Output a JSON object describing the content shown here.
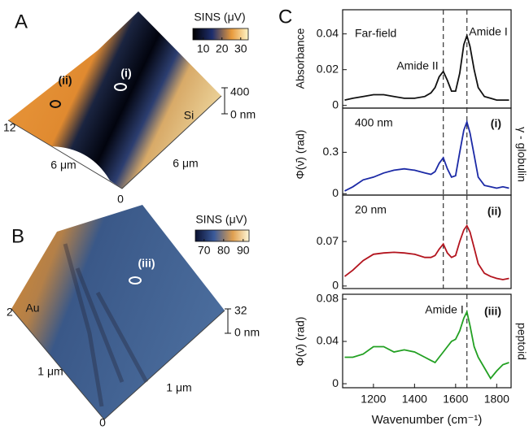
{
  "panel_a": {
    "letter": "A",
    "colorbar": {
      "label": "SINS (μV)",
      "range": [
        4.5,
        34
      ],
      "ticks": [
        10,
        20,
        30
      ]
    },
    "labels": [
      "(i)",
      "(ii)",
      "Si",
      "400",
      "0 nm",
      "12",
      "6 μm",
      "6 μm",
      "0"
    ]
  },
  "panel_b": {
    "letter": "B",
    "colorbar": {
      "label": "SINS (μV)",
      "range": [
        65.5,
        93
      ],
      "ticks": [
        70,
        80,
        90
      ]
    },
    "labels": [
      "(iii)",
      "Au",
      "32",
      "0 nm",
      "2",
      "1 μm",
      "1 μm",
      "0"
    ]
  },
  "panel_c": {
    "letter": "C",
    "side_labels": [
      "γ - globulin",
      "peptoid"
    ]
  },
  "chart_data": [
    {
      "type": "line",
      "ylabel": "Absorbance",
      "annotations": [
        "Far-field",
        "Amide II",
        "Amide I"
      ],
      "xlim": [
        1050,
        1870
      ],
      "ylim": [
        -0.0015,
        0.0535
      ],
      "yticks": [
        0,
        0.02,
        0.04
      ],
      "vlines": [
        1540,
        1655
      ],
      "x": [
        1060,
        1100,
        1150,
        1200,
        1250,
        1300,
        1350,
        1400,
        1450,
        1480,
        1500,
        1520,
        1540,
        1560,
        1580,
        1600,
        1620,
        1640,
        1655,
        1670,
        1690,
        1710,
        1740,
        1770,
        1800,
        1830,
        1860
      ],
      "series": [
        {
          "color": "#111111",
          "values": [
            0.003,
            0.004,
            0.005,
            0.006,
            0.006,
            0.005,
            0.004,
            0.004,
            0.005,
            0.007,
            0.01,
            0.016,
            0.019,
            0.014,
            0.008,
            0.008,
            0.018,
            0.034,
            0.039,
            0.033,
            0.02,
            0.01,
            0.005,
            0.004,
            0.003,
            0.003,
            0.003
          ]
        }
      ]
    },
    {
      "type": "line",
      "ylabel": "Φ(ν̄) (rad)",
      "annotations": [
        "400 nm",
        "(i)"
      ],
      "xlim": [
        1050,
        1870
      ],
      "ylim": [
        -0.01,
        0.62
      ],
      "yticks": [
        0,
        0.3
      ],
      "vlines": [
        1540,
        1655
      ],
      "x": [
        1060,
        1100,
        1150,
        1200,
        1250,
        1300,
        1350,
        1400,
        1450,
        1480,
        1500,
        1520,
        1540,
        1560,
        1580,
        1600,
        1620,
        1640,
        1655,
        1670,
        1690,
        1710,
        1740,
        1770,
        1800,
        1830,
        1860
      ],
      "series": [
        {
          "color": "#1c2aa6",
          "values": [
            0.02,
            0.05,
            0.1,
            0.12,
            0.15,
            0.17,
            0.18,
            0.17,
            0.15,
            0.14,
            0.16,
            0.22,
            0.26,
            0.18,
            0.12,
            0.13,
            0.3,
            0.46,
            0.52,
            0.44,
            0.28,
            0.12,
            0.06,
            0.05,
            0.04,
            0.05,
            0.04
          ]
        }
      ]
    },
    {
      "type": "line",
      "annotations": [
        "20 nm",
        "(ii)"
      ],
      "xlim": [
        1050,
        1870
      ],
      "ylim": [
        -0.004,
        0.143
      ],
      "yticks": [
        0,
        0.07
      ],
      "vlines": [
        1540,
        1655
      ],
      "x": [
        1060,
        1100,
        1150,
        1200,
        1250,
        1300,
        1350,
        1400,
        1450,
        1480,
        1500,
        1520,
        1540,
        1560,
        1580,
        1600,
        1620,
        1640,
        1655,
        1670,
        1690,
        1710,
        1740,
        1770,
        1800,
        1830,
        1860
      ],
      "series": [
        {
          "color": "#b3141e",
          "values": [
            0.015,
            0.025,
            0.04,
            0.05,
            0.052,
            0.053,
            0.052,
            0.05,
            0.045,
            0.045,
            0.048,
            0.058,
            0.066,
            0.052,
            0.045,
            0.048,
            0.07,
            0.088,
            0.095,
            0.085,
            0.06,
            0.035,
            0.02,
            0.015,
            0.012,
            0.01,
            0.012
          ]
        }
      ]
    },
    {
      "type": "line",
      "ylabel": "Φ(ν̄) (rad)",
      "annotations": [
        "Amide I",
        "(iii)"
      ],
      "xlabel": "Wavenumber (cm⁻¹)",
      "xlim": [
        1050,
        1870
      ],
      "ylim": [
        -0.0038,
        0.0846
      ],
      "yticks": [
        0,
        0.04,
        0.08
      ],
      "xticks": [
        1200,
        1400,
        1600,
        1800
      ],
      "vlines": [
        1655
      ],
      "x": [
        1060,
        1100,
        1150,
        1200,
        1250,
        1300,
        1350,
        1400,
        1450,
        1480,
        1500,
        1520,
        1540,
        1560,
        1580,
        1600,
        1620,
        1640,
        1655,
        1670,
        1690,
        1710,
        1740,
        1770,
        1800,
        1830,
        1860
      ],
      "series": [
        {
          "color": "#22a022",
          "values": [
            0.025,
            0.025,
            0.028,
            0.035,
            0.035,
            0.03,
            0.032,
            0.03,
            0.025,
            0.022,
            0.02,
            0.025,
            0.03,
            0.035,
            0.04,
            0.042,
            0.05,
            0.062,
            0.068,
            0.055,
            0.035,
            0.025,
            0.015,
            0.005,
            0.012,
            0.018,
            0.02
          ]
        }
      ]
    }
  ]
}
